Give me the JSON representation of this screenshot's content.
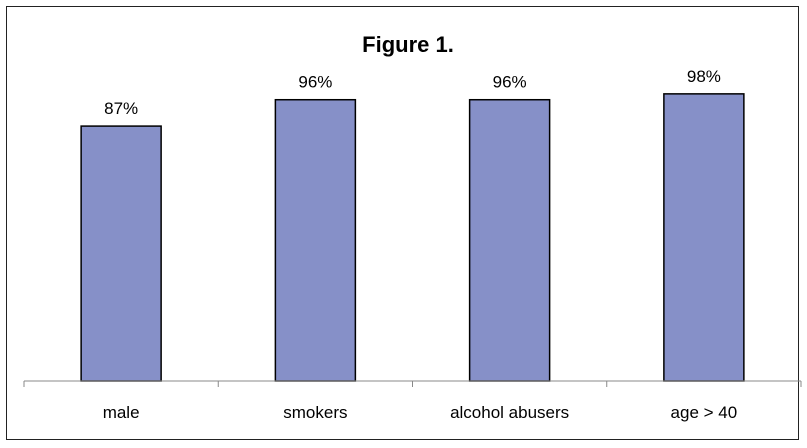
{
  "chart_data": {
    "type": "bar",
    "title": "Figure 1.",
    "categories": [
      "male",
      "smokers",
      "alcohol abusers",
      "age > 40"
    ],
    "values": [
      87,
      96,
      96,
      98
    ],
    "value_labels": [
      "87%",
      "96%",
      "96%",
      "98%"
    ],
    "xlabel": "",
    "ylabel": "",
    "ylim": [
      0,
      100
    ],
    "grid": false,
    "legend": "none",
    "bar_color": "#8690C8"
  }
}
